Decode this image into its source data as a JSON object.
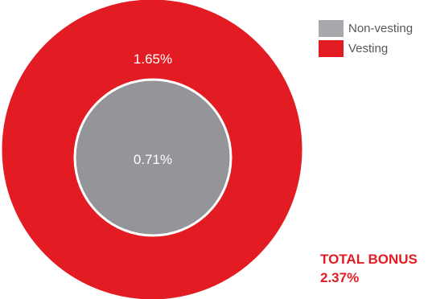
{
  "chart_data": {
    "type": "nested-donut",
    "series": [
      {
        "name": "Non-vesting",
        "value": 0.71,
        "label": "0.71%",
        "color": "#939598"
      },
      {
        "name": "Vesting",
        "value": 1.65,
        "label": "1.65%",
        "color": "#e31b23"
      }
    ],
    "legend": {
      "position": "top-right",
      "items": [
        {
          "label": "Non-vesting",
          "color": "#a7a9ac"
        },
        {
          "label": "Vesting",
          "color": "#e31b23"
        }
      ]
    },
    "total": {
      "label": "TOTAL BONUS",
      "value": "2.37%",
      "color": "#e31b23"
    }
  }
}
